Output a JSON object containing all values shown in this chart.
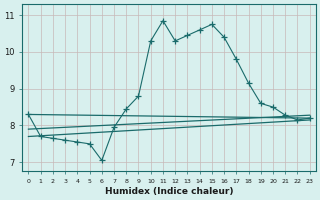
{
  "bg_color": "#d8f0ee",
  "grid_color_major": "#c0d8d4",
  "grid_color_minor": "#dce8e6",
  "line_color": "#1a6b6b",
  "xlabel": "Humidex (Indice chaleur)",
  "xlim": [
    -0.5,
    23.5
  ],
  "ylim": [
    6.75,
    11.3
  ],
  "yticks": [
    7,
    8,
    9,
    10,
    11
  ],
  "xticks": [
    0,
    1,
    2,
    3,
    4,
    5,
    6,
    7,
    8,
    9,
    10,
    11,
    12,
    13,
    14,
    15,
    16,
    17,
    18,
    19,
    20,
    21,
    22,
    23
  ],
  "main_x": [
    0,
    1,
    2,
    3,
    4,
    5,
    6,
    7,
    8,
    9,
    10,
    11,
    12,
    13,
    14,
    15,
    16,
    17,
    18,
    19,
    20,
    21,
    22,
    23
  ],
  "main_y": [
    8.3,
    7.7,
    7.65,
    7.6,
    7.55,
    7.5,
    7.05,
    7.95,
    8.45,
    8.8,
    10.3,
    10.85,
    10.3,
    10.45,
    10.6,
    10.75,
    10.4,
    9.8,
    9.15,
    8.6,
    8.5,
    8.28,
    8.15,
    8.2
  ],
  "trend1_x": [
    0,
    23
  ],
  "trend1_y": [
    8.3,
    8.2
  ],
  "trend2_x": [
    0,
    23
  ],
  "trend2_y": [
    7.9,
    8.28
  ],
  "trend3_x": [
    0,
    23
  ],
  "trend3_y": [
    7.7,
    8.15
  ]
}
